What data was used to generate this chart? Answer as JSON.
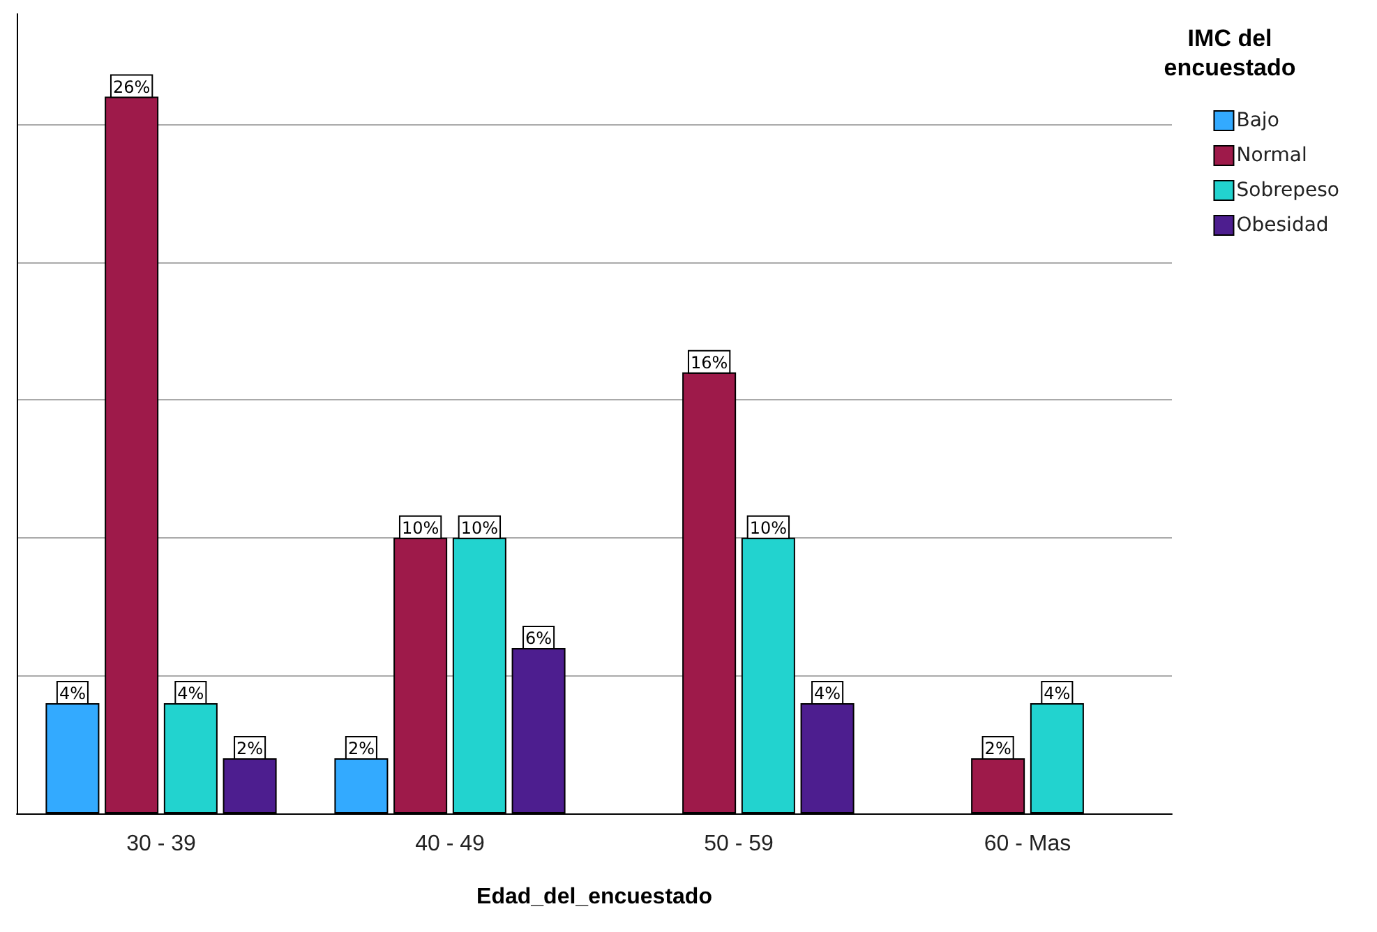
{
  "chart_data": {
    "type": "bar",
    "xlabel": "Edad_del_encuestado",
    "legend_title": "IMC del\nencuestado",
    "categories": [
      "30 - 39",
      "40 - 49",
      "50 - 59",
      "60 - Mas"
    ],
    "series": [
      {
        "name": "Bajo",
        "color": "#33aaff",
        "values": [
          4,
          2,
          null,
          null
        ],
        "value_labels": [
          "4%",
          "2%",
          null,
          null
        ]
      },
      {
        "name": "Normal",
        "color": "#9e1a4a",
        "values": [
          26,
          10,
          16,
          2
        ],
        "value_labels": [
          "26%",
          "10%",
          "16%",
          "2%"
        ]
      },
      {
        "name": "Sobrepeso",
        "color": "#22d3cf",
        "values": [
          4,
          10,
          10,
          4
        ],
        "value_labels": [
          "4%",
          "10%",
          "10%",
          "4%"
        ]
      },
      {
        "name": "Obesidad",
        "color": "#4d1e8f",
        "values": [
          2,
          6,
          4,
          null
        ],
        "value_labels": [
          "2%",
          "6%",
          "4%",
          null
        ]
      }
    ],
    "ylim": [
      0,
      29
    ],
    "yticks": [
      {
        "value": 0,
        "label": null
      },
      {
        "value": 5,
        "label": null
      },
      {
        "value": 10,
        "label": null
      },
      {
        "value": 15,
        "label": null
      },
      {
        "value": 20,
        "label": null
      },
      {
        "value": 25,
        "label": null
      }
    ],
    "tick_labels": "x",
    "grid": "y",
    "legend": "top right"
  }
}
